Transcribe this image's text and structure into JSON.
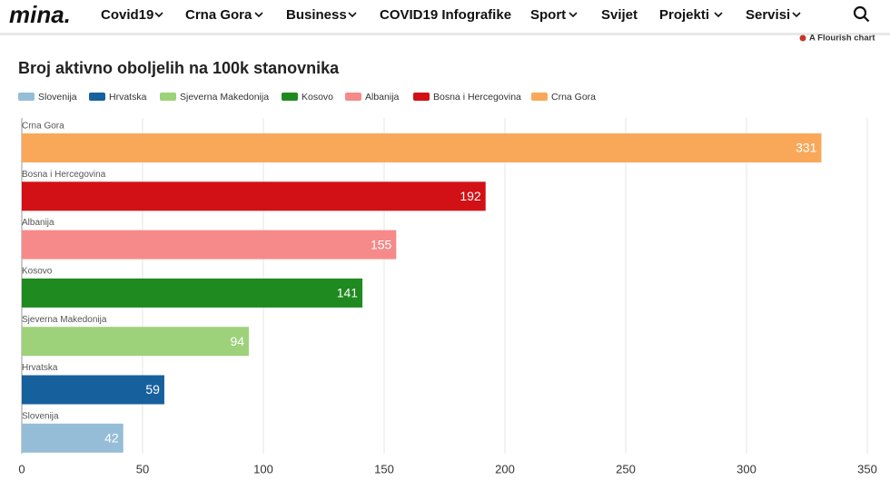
{
  "nav": {
    "logo": "mina.",
    "items": [
      "Covid19",
      "Crna Gora",
      "Business",
      "COVID19 Infografike",
      "Sport",
      "Svijet",
      "Projekti",
      "Servisi"
    ]
  },
  "credit": "A Flourish chart",
  "chart_data": {
    "type": "bar",
    "orientation": "horizontal",
    "title": "Broj aktivno oboljelih na 100k stanovnika",
    "categories": [
      "Crna Gora",
      "Bosna i Hercegovina",
      "Albanija",
      "Kosovo",
      "Sjeverna Makedonija",
      "Hrvatska",
      "Slovenija"
    ],
    "values": [
      331,
      192,
      155,
      141,
      94,
      59,
      42
    ],
    "colors": [
      "#f9a85a",
      "#d11116",
      "#f68a8a",
      "#1f8a1f",
      "#9dd27a",
      "#17609e",
      "#95bdd8"
    ],
    "xlim": [
      0,
      350
    ],
    "xticks": [
      0,
      50,
      100,
      150,
      200,
      250,
      300,
      350
    ],
    "grid": true,
    "legend": "top-left"
  }
}
